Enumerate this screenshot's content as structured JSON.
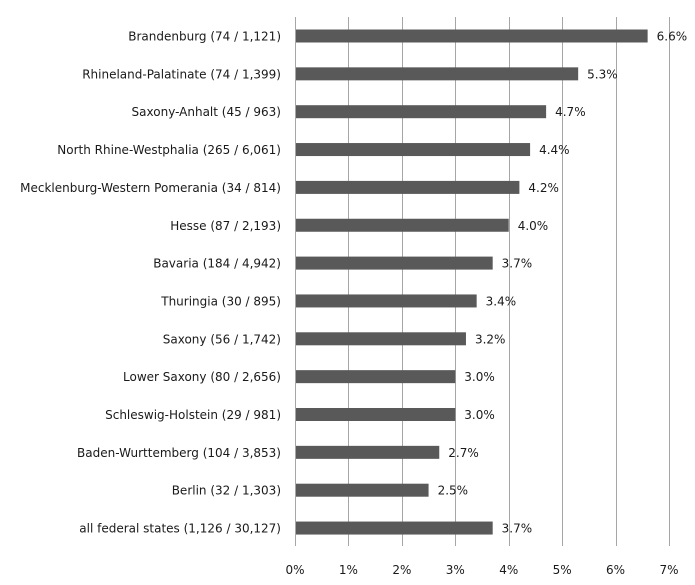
{
  "chart_data": {
    "type": "bar",
    "orientation": "horizontal",
    "categories": [
      "Brandenburg (74 / 1,121)",
      "Rhineland-Palatinate (74 / 1,399)",
      "Saxony-Anhalt (45 / 963)",
      "North Rhine-Westphalia (265 / 6,061)",
      "Mecklenburg-Western Pomerania (34 / 814)",
      "Hesse (87 / 2,193)",
      "Bavaria (184 / 4,942)",
      "Thuringia (30 / 895)",
      "Saxony (56 / 1,742)",
      "Lower Saxony (80 / 2,656)",
      "Schleswig-Holstein (29 / 981)",
      "Baden-Wurttemberg (104 / 3,853)",
      "Berlin (32 / 1,303)",
      "all federal states (1,126 / 30,127)"
    ],
    "values": [
      6.6,
      5.3,
      4.7,
      4.4,
      4.2,
      4.0,
      3.7,
      3.4,
      3.2,
      3.0,
      3.0,
      2.7,
      2.5,
      3.7
    ],
    "value_labels": [
      "6.6%",
      "5.3%",
      "4.7%",
      "4.4%",
      "4.2%",
      "4.0%",
      "3.7%",
      "3.4%",
      "3.2%",
      "3.0%",
      "3.0%",
      "2.7%",
      "2.5%",
      "3.7%"
    ],
    "x_ticks": [
      "0%",
      "1%",
      "2%",
      "3%",
      "4%",
      "5%",
      "6%",
      "7%"
    ],
    "xlim": [
      0,
      7
    ],
    "title": "",
    "xlabel": "",
    "ylabel": "",
    "grid": "vertical",
    "legend": "none",
    "bar_color": "#595959",
    "grid_color": "#a6a6a6"
  }
}
